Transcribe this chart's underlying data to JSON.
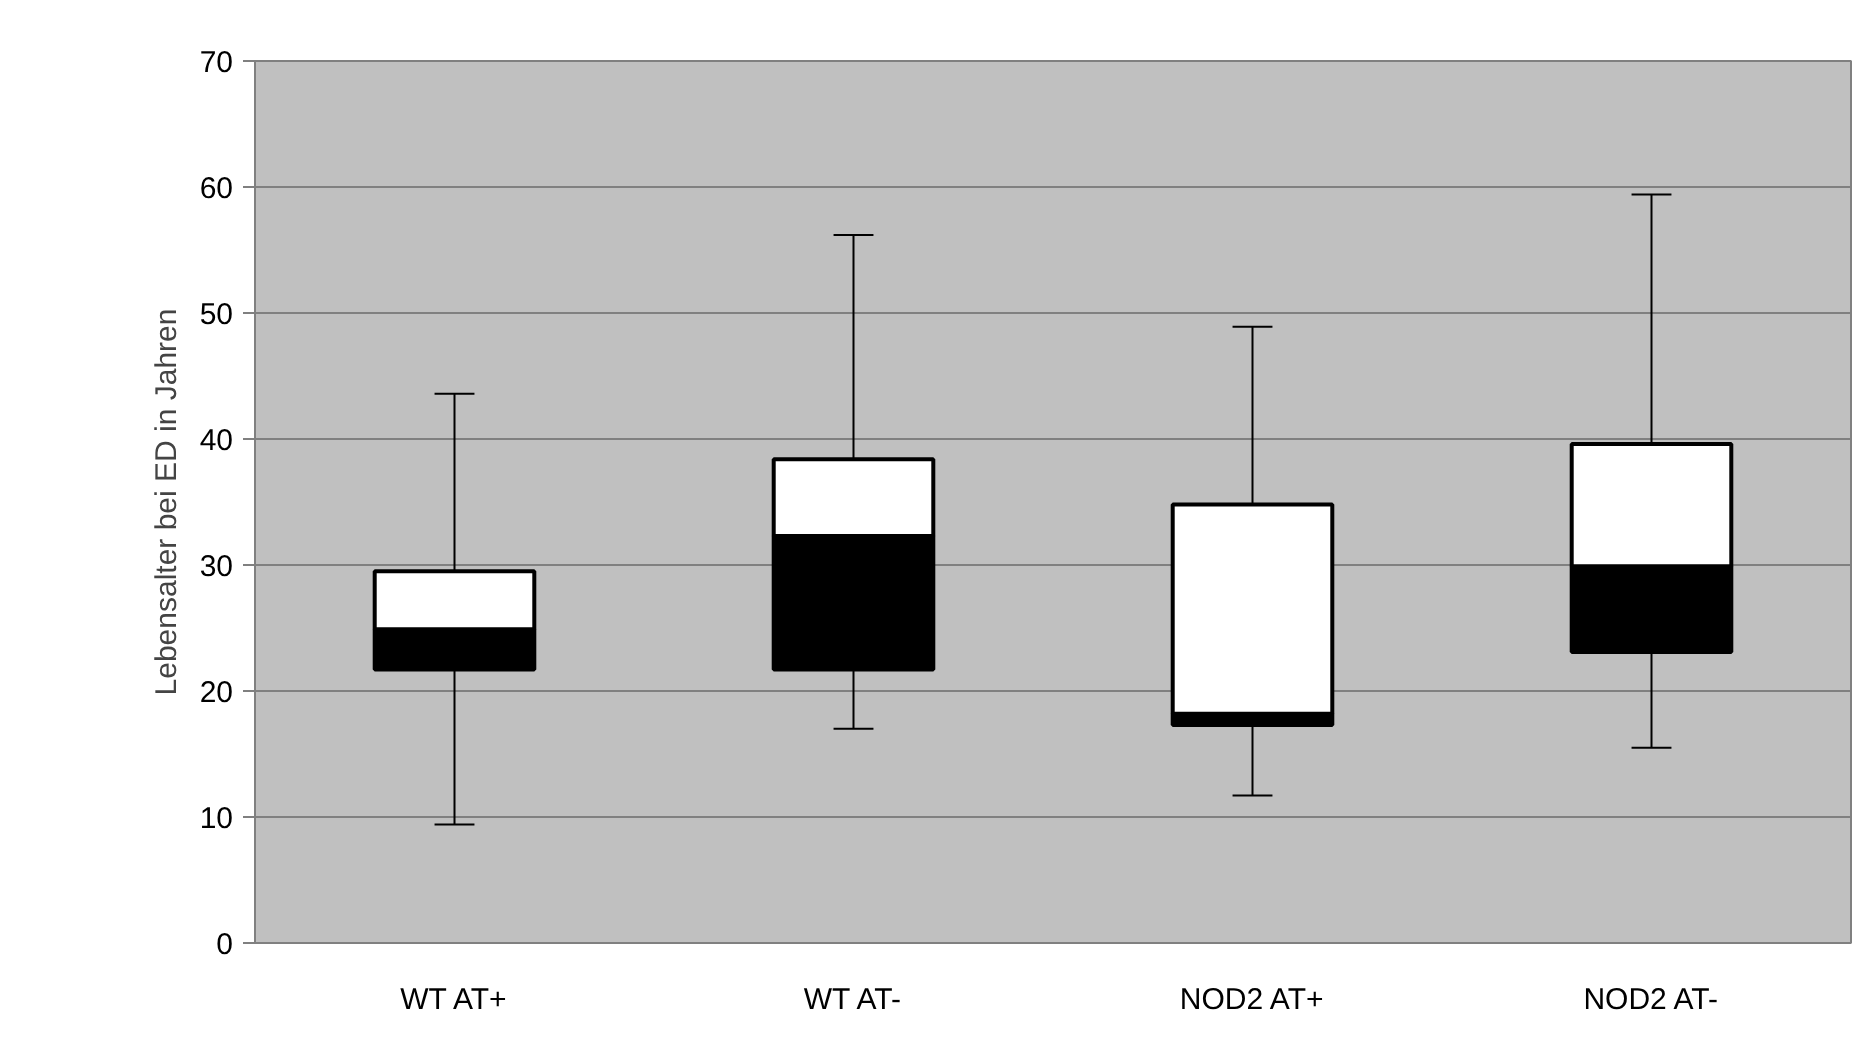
{
  "chart_data": {
    "type": "box",
    "ylabel": "Lebensalter bei ED in Jahren",
    "categories": [
      "WT AT+",
      "WT AT-",
      "NOD2 AT+",
      "NOD2 AT-"
    ],
    "series": [
      {
        "color": "#ffffff",
        "boxes": [
          {
            "low": 9.4,
            "q1": 21.7,
            "median": 24.9,
            "q3": 29.5,
            "high": 43.6
          },
          {
            "low": 17.0,
            "q1": 21.7,
            "median": 32.3,
            "q3": 38.4,
            "high": 56.2
          },
          {
            "low": 11.7,
            "q1": 17.3,
            "median": 18.2,
            "q3": 34.8,
            "high": 48.9
          },
          {
            "low": 15.5,
            "q1": 23.1,
            "median": 29.9,
            "q3": 39.6,
            "high": 59.4
          }
        ],
        "colors": [
          "#000000",
          "#000000",
          "#000000",
          "#000000"
        ]
      }
    ],
    "ylim": [
      0,
      70
    ],
    "yticks": [
      0,
      10,
      20,
      30,
      40,
      50,
      60,
      70
    ],
    "grid": "y"
  }
}
